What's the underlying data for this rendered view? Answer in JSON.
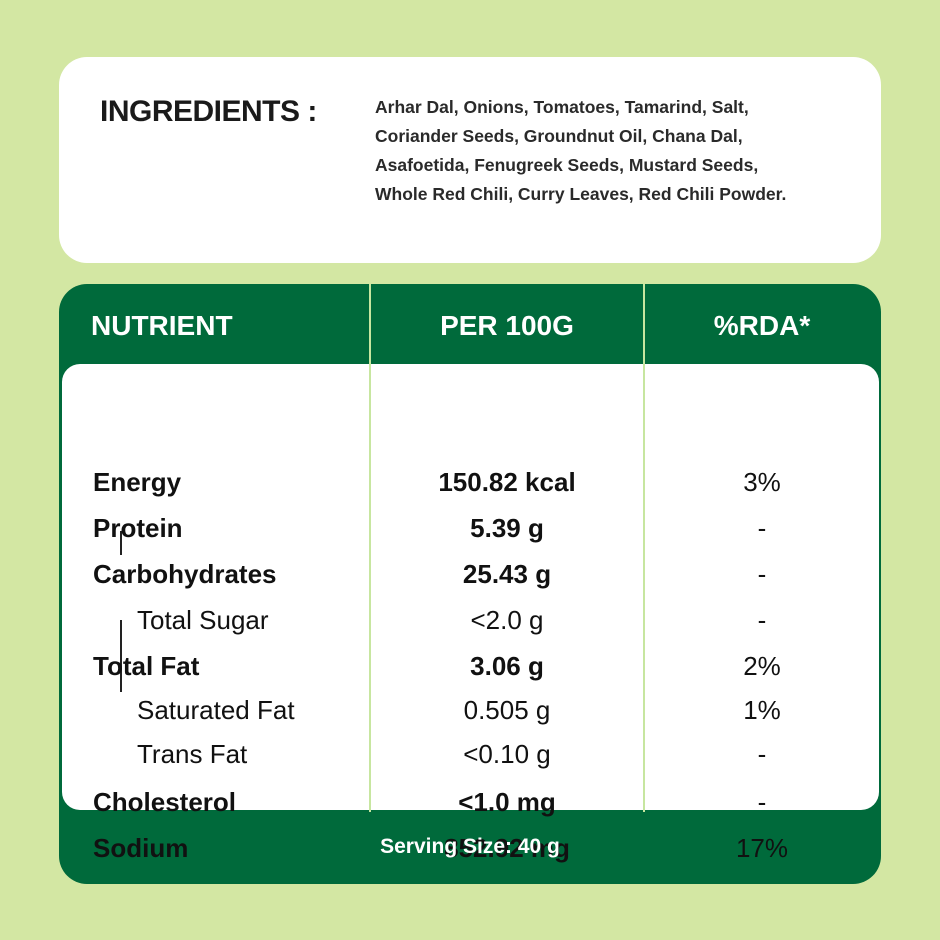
{
  "ingredients": {
    "title": "INGREDIENTS :",
    "lines": [
      "Arhar Dal, Onions, Tomatoes, Tamarind, Salt,",
      "Coriander Seeds, Groundnut Oil, Chana Dal,",
      "Asafoetida, Fenugreek Seeds, Mustard Seeds,",
      "Whole Red Chili, Curry Leaves, Red Chili Powder."
    ]
  },
  "nutrition": {
    "headers": {
      "nutrient": "NUTRIENT",
      "per100g": "PER 100G",
      "rda": "%RDA*"
    },
    "rows": [
      {
        "name": "Energy",
        "amount": "150.82 kcal",
        "rda": "3%"
      },
      {
        "name": "Protein",
        "amount": "5.39 g",
        "rda": "-"
      },
      {
        "name": "Carbohydrates",
        "amount": "25.43 g",
        "rda": "-"
      },
      {
        "name": "Total Sugar",
        "amount": "<2.0 g",
        "rda": "-"
      },
      {
        "name": "Total Fat",
        "amount": "3.06 g",
        "rda": "2%"
      },
      {
        "name": "Saturated Fat",
        "amount": "0.505 g",
        "rda": "1%"
      },
      {
        "name": "Trans Fat",
        "amount": "<0.10 g",
        "rda": "-"
      },
      {
        "name": "Cholesterol",
        "amount": "<1.0 mg",
        "rda": "-"
      },
      {
        "name": "Sodium",
        "amount": "852.92 mg",
        "rda": "17%"
      }
    ],
    "serving_size": "Serving Size: 40 g"
  },
  "colors": {
    "background": "#d3e7a3",
    "brand_green": "#006a3b",
    "divider": "#c7e6a0"
  }
}
